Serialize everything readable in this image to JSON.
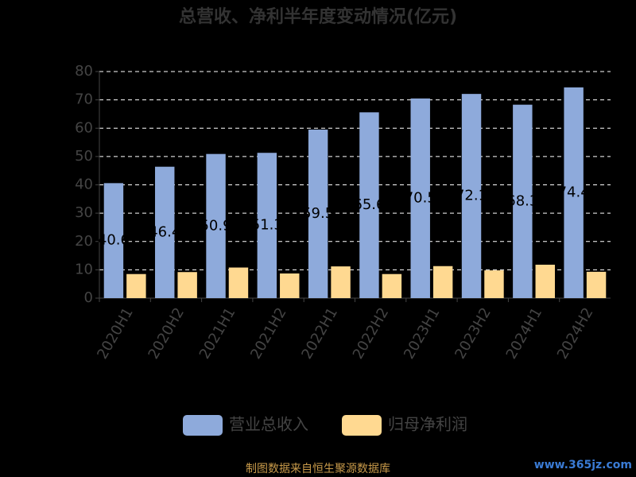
{
  "chart_data": {
    "type": "bar",
    "title": "总营收、净利半年度变动情况(亿元)",
    "categories": [
      "2020H1",
      "2020H2",
      "2021H1",
      "2021H2",
      "2022H1",
      "2022H2",
      "2023H1",
      "2023H2",
      "2024H1",
      "2024H2"
    ],
    "series": [
      {
        "name": "营业总收入",
        "color": "#8eaadb",
        "values": [
          40.6,
          46.4,
          50.9,
          51.3,
          59.5,
          65.6,
          70.5,
          72.1,
          68.3,
          74.4
        ]
      },
      {
        "name": "归母净利润",
        "color": "#ffd991",
        "values": [
          8.5,
          9.2,
          10.8,
          8.7,
          11.2,
          8.5,
          11.3,
          9.8,
          11.8,
          9.3
        ]
      }
    ],
    "ylim": [
      0,
      80
    ],
    "yticks": [
      0,
      10,
      20,
      30,
      40,
      50,
      60,
      70,
      80
    ],
    "grid": true,
    "source": "制图数据来自恒生聚源数据库",
    "watermark": "www.365jz.com"
  }
}
